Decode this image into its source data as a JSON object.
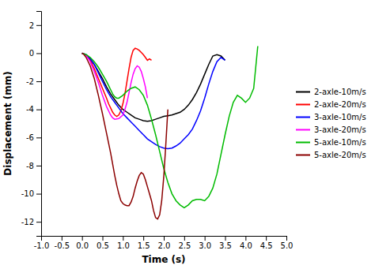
{
  "chart_data": {
    "type": "line",
    "xlabel": "Time (s)",
    "ylabel": "Displacement (mm)",
    "xlim": [
      -1.0,
      5.0
    ],
    "ylim": [
      -13,
      3
    ],
    "xticks": [
      {
        "value": -1.0,
        "label": "-1.0"
      },
      -0.5,
      {
        "value": 0.0,
        "label": "0.0"
      },
      0.5,
      {
        "value": 1.0,
        "label": "1.0"
      },
      1.5,
      {
        "value": 2.0,
        "label": "2.0"
      },
      2.5,
      {
        "value": 3.0,
        "label": "3.0"
      },
      3.5,
      {
        "value": 4.0,
        "label": "4.0"
      },
      4.5,
      {
        "value": 5.0,
        "label": "5.0"
      }
    ],
    "yticks": [
      -12,
      -10,
      -8,
      -6,
      -4,
      -2,
      0,
      2
    ],
    "grid": false,
    "legend": "center right",
    "series": [
      {
        "name": "2-axle-10m/s",
        "color": "#000000",
        "x": [
          0.0,
          0.1,
          0.2,
          0.3,
          0.4,
          0.5,
          0.6,
          0.7,
          0.8,
          0.9,
          1.0,
          1.1,
          1.2,
          1.3,
          1.4,
          1.5,
          1.6,
          1.7,
          1.8,
          1.9,
          2.0,
          2.1,
          2.2,
          2.3,
          2.4,
          2.5,
          2.6,
          2.7,
          2.8,
          2.9,
          3.0,
          3.1,
          3.2,
          3.3,
          3.4,
          3.5
        ],
        "values": [
          0.0,
          -0.15,
          -0.4,
          -0.8,
          -1.3,
          -1.8,
          -2.4,
          -2.9,
          -3.3,
          -3.7,
          -4.0,
          -4.2,
          -4.4,
          -4.6,
          -4.7,
          -4.8,
          -4.85,
          -4.8,
          -4.7,
          -4.6,
          -4.5,
          -4.45,
          -4.4,
          -4.3,
          -4.2,
          -4.0,
          -3.7,
          -3.3,
          -2.8,
          -2.2,
          -1.5,
          -0.8,
          -0.2,
          -0.1,
          -0.2,
          -0.5
        ]
      },
      {
        "name": "2-axle-20m/s",
        "color": "#ff0000",
        "x": [
          0.0,
          0.05,
          0.1,
          0.2,
          0.3,
          0.4,
          0.5,
          0.6,
          0.65,
          0.7,
          0.75,
          0.8,
          0.85,
          0.9,
          0.95,
          1.0,
          1.05,
          1.1,
          1.15,
          1.2,
          1.25,
          1.3,
          1.35,
          1.4,
          1.45,
          1.5,
          1.55,
          1.6,
          1.65,
          1.7
        ],
        "values": [
          0.0,
          -0.05,
          -0.15,
          -0.5,
          -1.1,
          -1.8,
          -2.5,
          -3.2,
          -3.6,
          -3.9,
          -4.2,
          -4.4,
          -4.5,
          -4.4,
          -4.1,
          -3.6,
          -2.9,
          -2.0,
          -1.1,
          -0.3,
          0.2,
          0.35,
          0.3,
          0.2,
          0.05,
          -0.1,
          -0.3,
          -0.5,
          -0.4,
          -0.5
        ]
      },
      {
        "name": "3-axle-10m/s",
        "color": "#0000ff",
        "x": [
          0.0,
          0.1,
          0.2,
          0.3,
          0.4,
          0.5,
          0.6,
          0.7,
          0.8,
          0.9,
          1.0,
          1.1,
          1.2,
          1.3,
          1.4,
          1.5,
          1.6,
          1.7,
          1.8,
          1.9,
          2.0,
          2.1,
          2.2,
          2.3,
          2.4,
          2.5,
          2.6,
          2.7,
          2.8,
          2.9,
          3.0,
          3.1,
          3.2,
          3.3,
          3.4,
          3.5
        ],
        "values": [
          0.0,
          -0.1,
          -0.4,
          -0.8,
          -1.4,
          -2.0,
          -2.6,
          -3.1,
          -3.5,
          -3.9,
          -4.3,
          -4.6,
          -4.9,
          -5.2,
          -5.5,
          -5.8,
          -6.1,
          -6.3,
          -6.5,
          -6.65,
          -6.75,
          -6.8,
          -6.75,
          -6.6,
          -6.4,
          -6.1,
          -5.8,
          -5.4,
          -4.8,
          -4.1,
          -3.2,
          -2.2,
          -1.3,
          -0.6,
          -0.3,
          -0.5
        ]
      },
      {
        "name": "3-axle-20m/s",
        "color": "#ff00ff",
        "x": [
          0.0,
          0.05,
          0.1,
          0.2,
          0.3,
          0.4,
          0.5,
          0.6,
          0.65,
          0.7,
          0.75,
          0.8,
          0.9,
          1.0,
          1.05,
          1.1,
          1.15,
          1.2,
          1.25,
          1.3,
          1.35,
          1.4,
          1.45,
          1.5,
          1.55,
          1.6
        ],
        "values": [
          0.0,
          -0.05,
          -0.15,
          -0.6,
          -1.3,
          -2.1,
          -3.0,
          -3.8,
          -4.1,
          -4.4,
          -4.6,
          -4.7,
          -4.65,
          -4.4,
          -4.0,
          -3.5,
          -2.8,
          -2.1,
          -1.5,
          -1.1,
          -0.9,
          -1.0,
          -1.3,
          -1.8,
          -2.4,
          -3.2
        ]
      },
      {
        "name": "5-axle-10m/s",
        "color": "#00bb00",
        "x": [
          0.0,
          0.1,
          0.2,
          0.3,
          0.4,
          0.5,
          0.6,
          0.65,
          0.7,
          0.75,
          0.8,
          0.85,
          0.9,
          1.0,
          1.1,
          1.2,
          1.3,
          1.4,
          1.5,
          1.6,
          1.7,
          1.8,
          1.9,
          2.0,
          2.1,
          2.2,
          2.3,
          2.4,
          2.5,
          2.6,
          2.7,
          2.8,
          2.9,
          3.0,
          3.1,
          3.2,
          3.3,
          3.4,
          3.5,
          3.6,
          3.7,
          3.8,
          3.9,
          4.0,
          4.1,
          4.2,
          4.3
        ],
        "values": [
          0.0,
          -0.1,
          -0.3,
          -0.6,
          -1.0,
          -1.5,
          -2.0,
          -2.3,
          -2.6,
          -2.9,
          -3.1,
          -3.2,
          -3.2,
          -3.0,
          -2.7,
          -2.5,
          -2.4,
          -2.6,
          -3.0,
          -3.7,
          -4.7,
          -5.8,
          -7.0,
          -8.2,
          -9.2,
          -10.0,
          -10.5,
          -10.8,
          -11.0,
          -10.8,
          -10.5,
          -10.4,
          -10.4,
          -10.5,
          -10.2,
          -9.6,
          -8.6,
          -7.2,
          -5.8,
          -4.5,
          -3.5,
          -3.0,
          -3.2,
          -3.5,
          -3.2,
          -2.5,
          0.5
        ]
      },
      {
        "name": "5-axle-20m/s",
        "color": "#8b0000",
        "x": [
          0.0,
          0.05,
          0.1,
          0.2,
          0.3,
          0.4,
          0.5,
          0.6,
          0.7,
          0.75,
          0.8,
          0.85,
          0.9,
          0.95,
          1.0,
          1.05,
          1.1,
          1.15,
          1.2,
          1.25,
          1.3,
          1.35,
          1.4,
          1.45,
          1.5,
          1.55,
          1.6,
          1.65,
          1.7,
          1.75,
          1.8,
          1.85,
          1.9,
          1.95,
          2.0,
          2.05,
          2.1
        ],
        "values": [
          0.0,
          -0.1,
          -0.3,
          -0.9,
          -1.8,
          -3.0,
          -4.3,
          -5.7,
          -7.1,
          -7.9,
          -8.7,
          -9.4,
          -10.0,
          -10.5,
          -10.7,
          -10.8,
          -10.85,
          -10.85,
          -10.6,
          -10.2,
          -9.6,
          -9.1,
          -8.7,
          -8.5,
          -8.6,
          -9.0,
          -9.5,
          -10.0,
          -10.5,
          -11.2,
          -11.7,
          -11.8,
          -11.5,
          -10.5,
          -8.8,
          -6.5,
          -4.0
        ]
      }
    ]
  }
}
